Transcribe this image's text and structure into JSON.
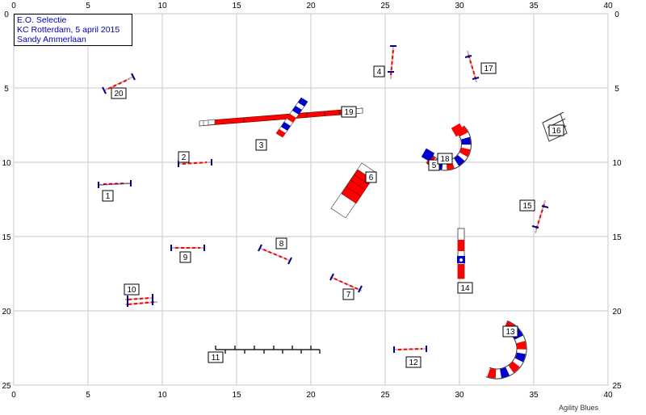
{
  "header": {
    "title": "E.O. Selectie",
    "location_date": "KC Rotterdam, 5 april 2015",
    "judge": "Sandy Ammerlaan"
  },
  "footer": {
    "brand": "Agility Blues"
  },
  "axes": {
    "x_ticks": [
      "0",
      "5",
      "10",
      "15",
      "20",
      "25",
      "30",
      "35",
      "40"
    ],
    "y_ticks": [
      "0",
      "5",
      "10",
      "15",
      "20",
      "25"
    ]
  },
  "colors": {
    "grid": "#c8c8c8",
    "bar_red": "#ff0000",
    "bar_blue": "#0000cc",
    "label_text": "#000000",
    "info_text": "#0000b4"
  },
  "obstacles": [
    {
      "number": "1",
      "type": "jump"
    },
    {
      "number": "2",
      "type": "jump"
    },
    {
      "number": "3",
      "type": "seesaw"
    },
    {
      "number": "4",
      "type": "jump"
    },
    {
      "number": "5",
      "type": "tunnel"
    },
    {
      "number": "6",
      "type": "a-frame"
    },
    {
      "number": "7",
      "type": "jump"
    },
    {
      "number": "8",
      "type": "jump"
    },
    {
      "number": "9",
      "type": "jump"
    },
    {
      "number": "10",
      "type": "double-jump"
    },
    {
      "number": "11",
      "type": "weave-poles"
    },
    {
      "number": "12",
      "type": "jump"
    },
    {
      "number": "13",
      "type": "tunnel"
    },
    {
      "number": "14",
      "type": "tire"
    },
    {
      "number": "15",
      "type": "jump"
    },
    {
      "number": "16",
      "type": "table"
    },
    {
      "number": "17",
      "type": "jump"
    },
    {
      "number": "18",
      "type": "tunnel-label"
    },
    {
      "number": "19",
      "type": "dogwalk"
    },
    {
      "number": "20",
      "type": "jump"
    }
  ]
}
